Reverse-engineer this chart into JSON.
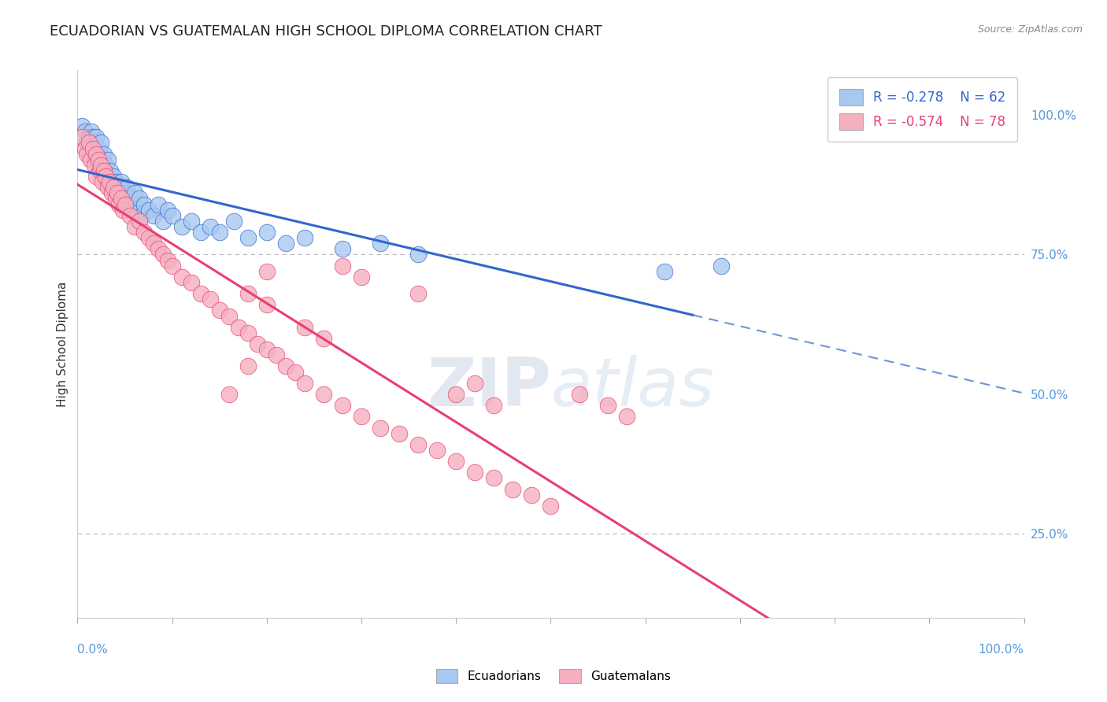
{
  "title": "ECUADORIAN VS GUATEMALAN HIGH SCHOOL DIPLOMA CORRELATION CHART",
  "source": "Source: ZipAtlas.com",
  "ylabel": "High School Diploma",
  "y_tick_labels": [
    "100.0%",
    "75.0%",
    "50.0%",
    "25.0%"
  ],
  "y_tick_values": [
    1.0,
    0.75,
    0.5,
    0.25
  ],
  "legend_label1": "Ecuadorians",
  "legend_label2": "Guatemalans",
  "R1": -0.278,
  "N1": 62,
  "R2": -0.574,
  "N2": 78,
  "color1": "#A8C8F0",
  "color2": "#F5B0C0",
  "trendline1_color": "#3366CC",
  "trendline2_color": "#E84070",
  "watermark_text": "ZIPatlas",
  "background_color": "#FFFFFF",
  "ecuadorians_x": [
    0.005,
    0.008,
    0.01,
    0.012,
    0.012,
    0.015,
    0.015,
    0.016,
    0.018,
    0.018,
    0.02,
    0.02,
    0.022,
    0.022,
    0.024,
    0.025,
    0.025,
    0.026,
    0.028,
    0.028,
    0.03,
    0.03,
    0.032,
    0.033,
    0.035,
    0.036,
    0.038,
    0.04,
    0.042,
    0.044,
    0.046,
    0.048,
    0.05,
    0.052,
    0.055,
    0.058,
    0.06,
    0.062,
    0.065,
    0.068,
    0.07,
    0.075,
    0.08,
    0.085,
    0.09,
    0.095,
    0.1,
    0.11,
    0.12,
    0.13,
    0.14,
    0.15,
    0.165,
    0.18,
    0.2,
    0.22,
    0.24,
    0.28,
    0.32,
    0.36,
    0.62,
    0.68
  ],
  "ecuadorians_y": [
    0.98,
    0.97,
    0.95,
    0.96,
    0.93,
    0.97,
    0.94,
    0.96,
    0.95,
    0.92,
    0.96,
    0.93,
    0.94,
    0.91,
    0.93,
    0.95,
    0.9,
    0.92,
    0.93,
    0.89,
    0.91,
    0.88,
    0.92,
    0.87,
    0.9,
    0.88,
    0.89,
    0.88,
    0.87,
    0.86,
    0.88,
    0.85,
    0.86,
    0.87,
    0.84,
    0.85,
    0.86,
    0.83,
    0.85,
    0.82,
    0.84,
    0.83,
    0.82,
    0.84,
    0.81,
    0.83,
    0.82,
    0.8,
    0.81,
    0.79,
    0.8,
    0.79,
    0.81,
    0.78,
    0.79,
    0.77,
    0.78,
    0.76,
    0.77,
    0.75,
    0.72,
    0.73
  ],
  "guatemalans_x": [
    0.005,
    0.008,
    0.01,
    0.012,
    0.014,
    0.016,
    0.018,
    0.02,
    0.02,
    0.022,
    0.024,
    0.025,
    0.026,
    0.028,
    0.03,
    0.032,
    0.034,
    0.036,
    0.038,
    0.04,
    0.042,
    0.044,
    0.046,
    0.048,
    0.05,
    0.055,
    0.06,
    0.065,
    0.07,
    0.075,
    0.08,
    0.085,
    0.09,
    0.095,
    0.1,
    0.11,
    0.12,
    0.13,
    0.14,
    0.15,
    0.16,
    0.17,
    0.18,
    0.19,
    0.2,
    0.21,
    0.22,
    0.23,
    0.24,
    0.26,
    0.28,
    0.3,
    0.32,
    0.34,
    0.36,
    0.38,
    0.4,
    0.42,
    0.44,
    0.46,
    0.48,
    0.5,
    0.18,
    0.2,
    0.24,
    0.26,
    0.28,
    0.3,
    0.53,
    0.56,
    0.58,
    0.4,
    0.44,
    0.42,
    0.36,
    0.2,
    0.18,
    0.16
  ],
  "guatemalans_y": [
    0.96,
    0.94,
    0.93,
    0.95,
    0.92,
    0.94,
    0.91,
    0.93,
    0.89,
    0.92,
    0.9,
    0.91,
    0.88,
    0.9,
    0.89,
    0.87,
    0.88,
    0.86,
    0.87,
    0.85,
    0.86,
    0.84,
    0.85,
    0.83,
    0.84,
    0.82,
    0.8,
    0.81,
    0.79,
    0.78,
    0.77,
    0.76,
    0.75,
    0.74,
    0.73,
    0.71,
    0.7,
    0.68,
    0.67,
    0.65,
    0.64,
    0.62,
    0.61,
    0.59,
    0.58,
    0.57,
    0.55,
    0.54,
    0.52,
    0.5,
    0.48,
    0.46,
    0.44,
    0.43,
    0.41,
    0.4,
    0.38,
    0.36,
    0.35,
    0.33,
    0.32,
    0.3,
    0.68,
    0.66,
    0.62,
    0.6,
    0.73,
    0.71,
    0.5,
    0.48,
    0.46,
    0.5,
    0.48,
    0.52,
    0.68,
    0.72,
    0.55,
    0.5
  ],
  "trendline1_x_solid_end": 0.65,
  "trendline1_x_dashed_start": 0.65,
  "trendline1_x_end": 1.0,
  "trendline2_x_start": 0.0,
  "trendline2_x_end": 1.0,
  "xlim": [
    0.0,
    1.0
  ],
  "ylim": [
    0.1,
    1.08
  ]
}
